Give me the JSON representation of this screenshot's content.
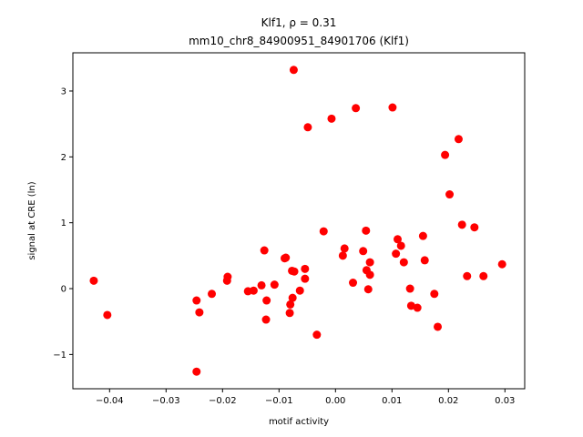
{
  "chart_data": {
    "type": "scatter",
    "title_line1": "Klf1, ρ = 0.31",
    "title_line2": "mm10_chr8_84900951_84901706 (Klf1)",
    "xlabel": "motif activity",
    "ylabel": "signal at CRE (ln)",
    "xlim": [
      -0.0465,
      0.0335
    ],
    "ylim": [
      -1.52,
      3.58
    ],
    "xticks": [
      -0.04,
      -0.03,
      -0.02,
      -0.01,
      0.0,
      0.01,
      0.02,
      0.03
    ],
    "xtick_labels": [
      "−0.04",
      "−0.03",
      "−0.02",
      "−0.01",
      "0.00",
      "0.01",
      "0.02",
      "0.03"
    ],
    "yticks": [
      -1,
      0,
      1,
      2,
      3
    ],
    "ytick_labels": [
      "−1",
      "0",
      "1",
      "2",
      "3"
    ],
    "grid": false,
    "marker_color": "#ff0000",
    "points": [
      [
        -0.0428,
        0.12
      ],
      [
        -0.0404,
        -0.4
      ],
      [
        -0.0246,
        -1.26
      ],
      [
        -0.0246,
        -0.18
      ],
      [
        -0.0241,
        -0.36
      ],
      [
        -0.0219,
        -0.08
      ],
      [
        -0.0192,
        0.12
      ],
      [
        -0.0191,
        0.18
      ],
      [
        -0.0155,
        -0.04
      ],
      [
        -0.0145,
        -0.03
      ],
      [
        -0.0131,
        0.05
      ],
      [
        -0.0126,
        0.58
      ],
      [
        -0.0123,
        -0.47
      ],
      [
        -0.0122,
        -0.18
      ],
      [
        -0.0108,
        0.06
      ],
      [
        -0.009,
        0.46
      ],
      [
        -0.0088,
        0.47
      ],
      [
        -0.0081,
        -0.37
      ],
      [
        -0.008,
        -0.24
      ],
      [
        -0.0077,
        0.27
      ],
      [
        -0.0076,
        -0.14
      ],
      [
        -0.0074,
        3.32
      ],
      [
        -0.0073,
        0.26
      ],
      [
        -0.0063,
        -0.03
      ],
      [
        -0.0054,
        0.3
      ],
      [
        -0.0054,
        0.15
      ],
      [
        -0.0049,
        2.45
      ],
      [
        -0.0033,
        -0.7
      ],
      [
        -0.0021,
        0.87
      ],
      [
        -0.0007,
        2.58
      ],
      [
        0.0013,
        0.5
      ],
      [
        0.0016,
        0.61
      ],
      [
        0.0031,
        0.09
      ],
      [
        0.0036,
        2.74
      ],
      [
        0.0049,
        0.57
      ],
      [
        0.0054,
        0.88
      ],
      [
        0.0055,
        0.28
      ],
      [
        0.0058,
        -0.01
      ],
      [
        0.0061,
        0.4
      ],
      [
        0.0061,
        0.21
      ],
      [
        0.0101,
        2.75
      ],
      [
        0.0107,
        0.53
      ],
      [
        0.011,
        0.75
      ],
      [
        0.0116,
        0.65
      ],
      [
        0.0121,
        0.4
      ],
      [
        0.0132,
        0.0
      ],
      [
        0.0134,
        -0.26
      ],
      [
        0.0145,
        -0.29
      ],
      [
        0.0155,
        0.8
      ],
      [
        0.0158,
        0.43
      ],
      [
        0.0175,
        -0.08
      ],
      [
        0.0181,
        -0.58
      ],
      [
        0.0194,
        2.03
      ],
      [
        0.0202,
        1.43
      ],
      [
        0.0218,
        2.27
      ],
      [
        0.0224,
        0.97
      ],
      [
        0.0233,
        0.19
      ],
      [
        0.0246,
        0.93
      ],
      [
        0.0262,
        0.19
      ],
      [
        0.0295,
        0.37
      ]
    ]
  }
}
